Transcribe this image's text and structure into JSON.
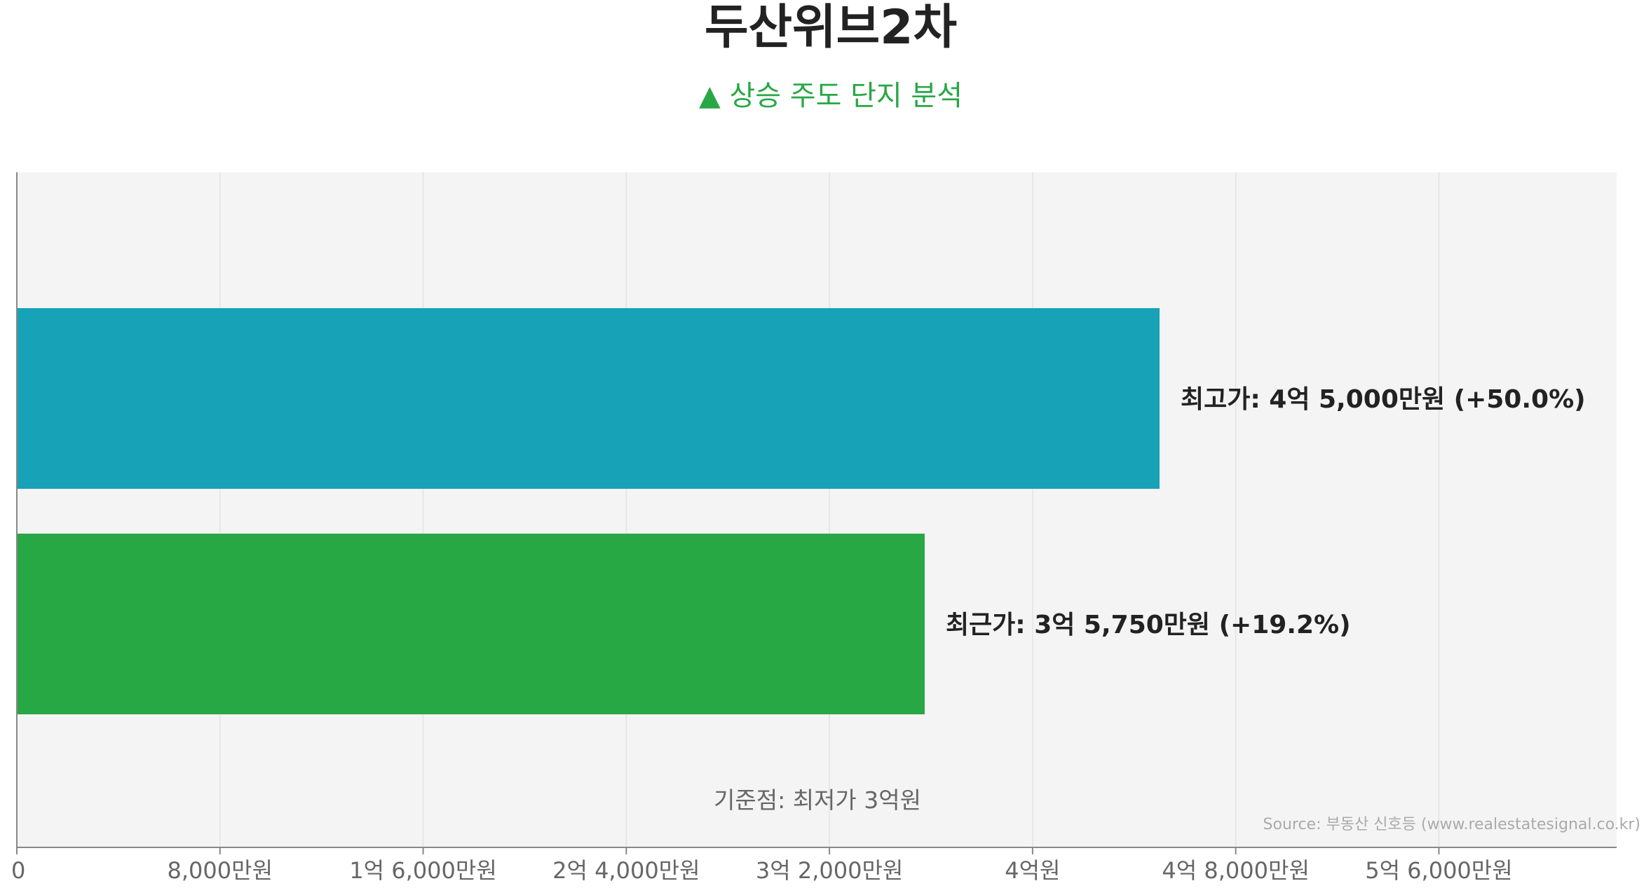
{
  "chart_data": {
    "type": "bar",
    "orientation": "horizontal",
    "title": "두산위브2차",
    "subtitle": "▲ 상승 주도 단지 분석",
    "xlim": [
      0,
      630000000
    ],
    "x_ticks": [
      {
        "value": 0,
        "label": "0"
      },
      {
        "value": 80000000,
        "label": "8,000만원"
      },
      {
        "value": 160000000,
        "label": "1억 6,000만원"
      },
      {
        "value": 240000000,
        "label": "2억 4,000만원"
      },
      {
        "value": 320000000,
        "label": "3억 2,000만원"
      },
      {
        "value": 400000000,
        "label": "4억원"
      },
      {
        "value": 480000000,
        "label": "4억 8,000만원"
      },
      {
        "value": 560000000,
        "label": "5억 6,000만원"
      }
    ],
    "grid": true,
    "bars": [
      {
        "category": "최고가",
        "value": 450000000,
        "label": "최고가: 4억 5,000만원 (+50.0%)",
        "color": "#17a2b8"
      },
      {
        "category": "최근가",
        "value": 357500000,
        "label": "최근가: 3억 5,750만원 (+19.2%)",
        "color": "#28a745"
      }
    ],
    "baseline_note": "기준점: 최저가 3억원",
    "source": "Source: 부동산 신호등 (www.realestatesignal.co.kr)"
  },
  "colors": {
    "plot_background": "#f4f4f4",
    "grid": "#e3e3e3",
    "axis": "#888888",
    "title": "#222222",
    "subtitle": "#28a745"
  }
}
